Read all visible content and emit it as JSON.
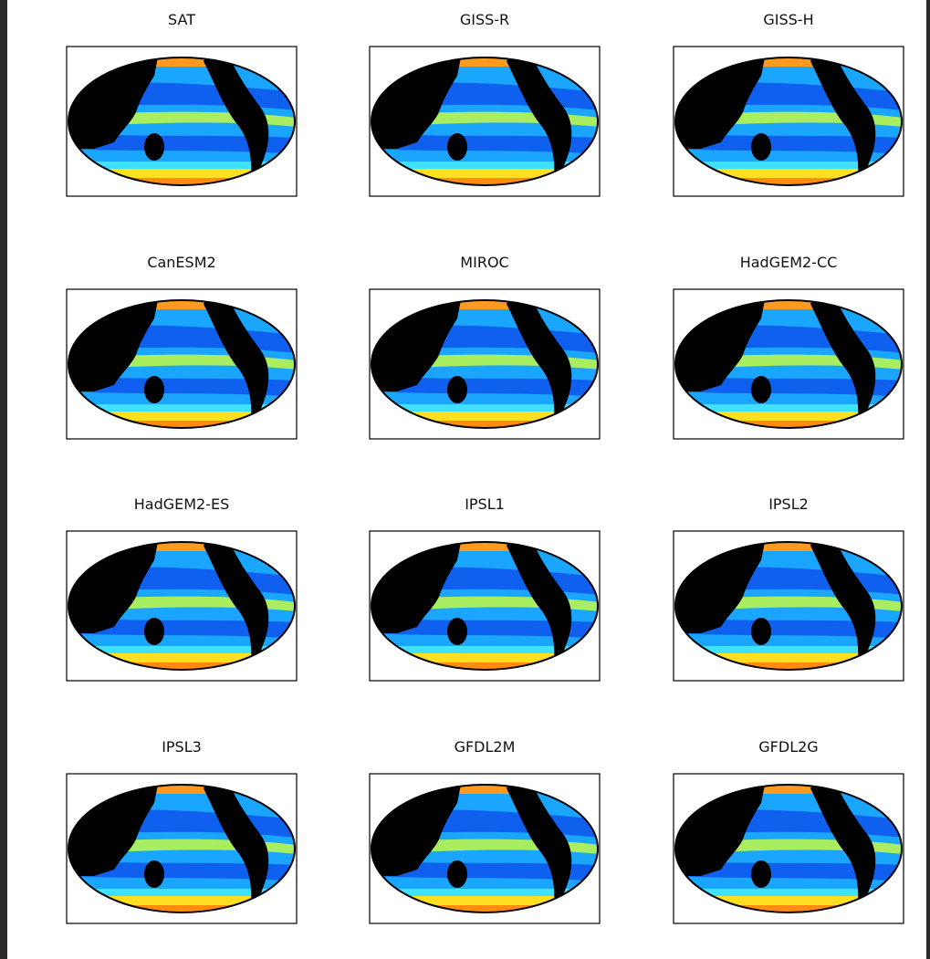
{
  "panels": [
    {
      "title": "SAT"
    },
    {
      "title": "GISS-R"
    },
    {
      "title": "GISS-H"
    },
    {
      "title": "CanESM2"
    },
    {
      "title": "MIROC"
    },
    {
      "title": "HadGEM2-CC"
    },
    {
      "title": "HadGEM2-ES"
    },
    {
      "title": "IPSL1"
    },
    {
      "title": "IPSL2"
    },
    {
      "title": "IPSL3"
    },
    {
      "title": "GFDL2M"
    },
    {
      "title": "GFDL2G"
    }
  ]
}
